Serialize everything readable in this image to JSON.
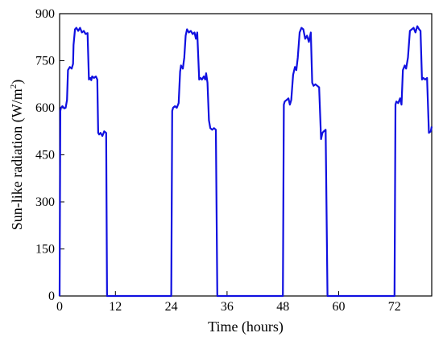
{
  "chart_data": {
    "type": "line",
    "title": "",
    "xlabel": "Time (hours)",
    "ylabel_prefix": "Sun-like radiation (W/m",
    "ylabel_sup": "2",
    "ylabel_suffix": ")",
    "xlim": [
      0,
      80
    ],
    "ylim": [
      0,
      900
    ],
    "xticks": [
      0,
      12,
      24,
      36,
      48,
      60,
      72
    ],
    "yticks": [
      0,
      150,
      300,
      450,
      600,
      750,
      900
    ],
    "grid": false,
    "line_color": "#1010e0",
    "series": [
      {
        "x": [
          0,
          0.15,
          0.3,
          0.6,
          1.0,
          1.3,
          1.6,
          1.8,
          2.2,
          2.6,
          2.9,
          3.0,
          3.3,
          3.6,
          4.0,
          4.4,
          4.8,
          5.2,
          5.6,
          6.0,
          6.3,
          6.6,
          6.8,
          7.0,
          7.4,
          7.8,
          8.1,
          8.3,
          8.5,
          8.8,
          9.2,
          9.6,
          10.0,
          10.2,
          10.4,
          24.0,
          24.2,
          24.4,
          24.8,
          25.2,
          25.6,
          25.9,
          26.1,
          26.5,
          26.8,
          27.1,
          27.4,
          27.8,
          28.2,
          28.6,
          29.0,
          29.3,
          29.6,
          30.0,
          30.3,
          30.6,
          31.0,
          31.3,
          31.5,
          31.8,
          32.1,
          32.4,
          32.8,
          33.2,
          33.6,
          33.9,
          34.0,
          34.2,
          48.0,
          48.2,
          48.4,
          48.8,
          49.2,
          49.5,
          49.8,
          50.2,
          50.6,
          50.9,
          51.2,
          51.6,
          52.0,
          52.4,
          52.8,
          53.2,
          53.6,
          54.0,
          54.3,
          54.6,
          55.0,
          55.4,
          55.8,
          56.2,
          56.5,
          56.8,
          57.2,
          57.6,
          57.9,
          58.0,
          58.2,
          72.0,
          72.2,
          72.4,
          72.8,
          73.2,
          73.5,
          73.8,
          74.2,
          74.5,
          74.9,
          75.3,
          75.7,
          76.1,
          76.5,
          76.9,
          77.3,
          77.6,
          77.9,
          78.2,
          78.6,
          79.0,
          79.4,
          79.8,
          80.0
        ],
        "values": [
          0,
          590,
          600,
          605,
          598,
          600,
          625,
          720,
          730,
          725,
          740,
          800,
          850,
          855,
          845,
          855,
          840,
          845,
          835,
          838,
          690,
          695,
          688,
          700,
          695,
          700,
          690,
          520,
          515,
          520,
          510,
          525,
          520,
          0,
          0,
          0,
          590,
          600,
          605,
          600,
          615,
          715,
          735,
          725,
          760,
          830,
          850,
          840,
          845,
          835,
          840,
          820,
          840,
          690,
          695,
          690,
          700,
          690,
          710,
          680,
          560,
          535,
          530,
          535,
          530,
          0,
          0,
          0,
          0,
          610,
          620,
          625,
          630,
          610,
          625,
          705,
          730,
          720,
          760,
          840,
          855,
          850,
          820,
          830,
          810,
          840,
          680,
          670,
          675,
          670,
          665,
          500,
          520,
          525,
          530,
          0,
          0,
          0,
          0,
          0,
          610,
          620,
          615,
          630,
          610,
          720,
          735,
          725,
          760,
          845,
          850,
          855,
          840,
          860,
          850,
          845,
          690,
          695,
          690,
          695,
          520,
          525,
          540
        ]
      }
    ]
  }
}
